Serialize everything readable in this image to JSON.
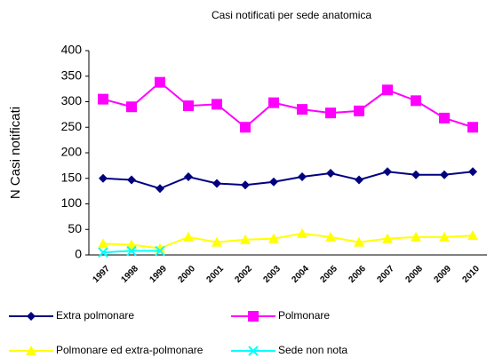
{
  "chart_data": {
    "type": "line",
    "title": "Casi notificati per sede anatomica",
    "y_label": "N Casi notificati",
    "categories": [
      "1997",
      "1998",
      "1999",
      "2000",
      "2001",
      "2002",
      "2003",
      "2004",
      "2005",
      "2006",
      "2007",
      "2008",
      "2009",
      "2010"
    ],
    "series": [
      {
        "name": "Extra polmonare",
        "color": "#000080",
        "marker": "diamond",
        "values": [
          150,
          147,
          130,
          153,
          140,
          137,
          143,
          153,
          160,
          147,
          163,
          157,
          157,
          163
        ]
      },
      {
        "name": "Polmonare",
        "color": "#ff00ff",
        "marker": "square",
        "values": [
          305,
          290,
          338,
          292,
          295,
          250,
          298,
          285,
          278,
          282,
          323,
          302,
          268,
          250
        ]
      },
      {
        "name": "Polmonare ed extra-polmonare",
        "color": "#ffff00",
        "marker": "triangle",
        "values": [
          22,
          20,
          13,
          35,
          25,
          30,
          32,
          42,
          35,
          25,
          32,
          35,
          35,
          38
        ]
      },
      {
        "name": "Sede non nota",
        "color": "#00ffff",
        "marker": "x",
        "values": [
          5,
          8,
          8,
          null,
          null,
          null,
          null,
          null,
          null,
          null,
          null,
          null,
          null,
          null
        ]
      }
    ],
    "ylim": [
      0,
      400
    ],
    "yticks": [
      0,
      50,
      100,
      150,
      200,
      250,
      300,
      350,
      400
    ],
    "grid": false
  }
}
